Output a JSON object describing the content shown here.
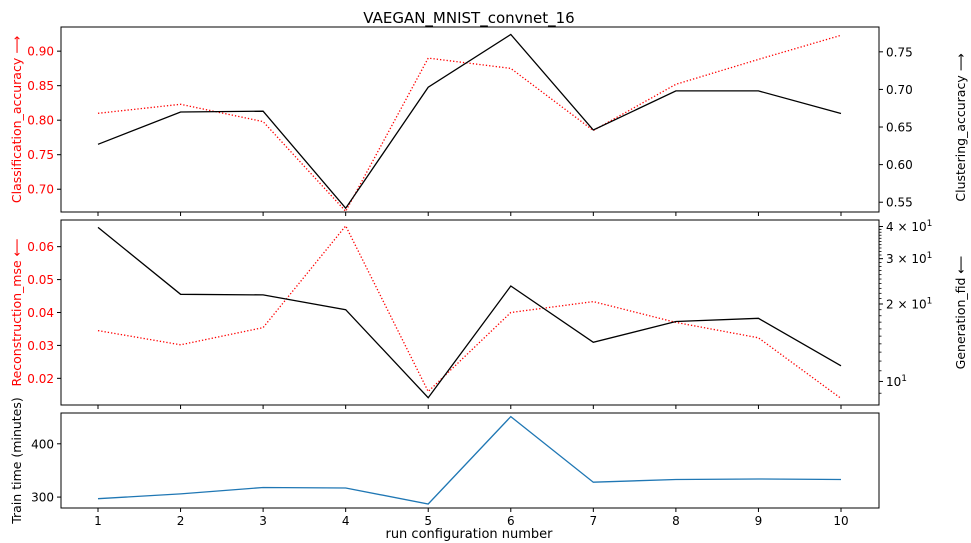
{
  "title": "VAEGAN_MNIST_convnet_16",
  "xlabel": "run configuration number",
  "colors": {
    "red": "#ff0000",
    "black": "#000000",
    "blue": "#1f77b4"
  },
  "chart_data": [
    {
      "type": "line",
      "panel": "top",
      "title": "VAEGAN_MNIST_convnet_16",
      "x": [
        1,
        2,
        3,
        4,
        5,
        6,
        7,
        8,
        9,
        10
      ],
      "xticks": [
        "1",
        "2",
        "3",
        "4",
        "5",
        "6",
        "7",
        "8",
        "9",
        "10"
      ],
      "ylabel_left": "Classification_accuracy ⟶",
      "ylabel_right": "Clustering_accuracy ⟶",
      "yticks_left": [
        "0.70",
        "0.75",
        "0.80",
        "0.85",
        "0.90"
      ],
      "yticks_right": [
        "0.55",
        "0.60",
        "0.65",
        "0.70",
        "0.75"
      ],
      "ylim_left": [
        0.667,
        0.935
      ],
      "ylim_right": [
        0.537,
        0.783
      ],
      "series": [
        {
          "axis": "left",
          "color": "#ff0000",
          "style": "dotted",
          "values": [
            0.81,
            0.823,
            0.798,
            0.668,
            0.89,
            0.875,
            0.785,
            0.852,
            0.888,
            0.923
          ]
        },
        {
          "axis": "right",
          "color": "#000000",
          "style": "solid",
          "values": [
            0.627,
            0.67,
            0.671,
            0.542,
            0.703,
            0.773,
            0.646,
            0.698,
            0.698,
            0.668
          ]
        }
      ]
    },
    {
      "type": "line",
      "panel": "middle",
      "x": [
        1,
        2,
        3,
        4,
        5,
        6,
        7,
        8,
        9,
        10
      ],
      "ylabel_left": "Reconstruction_mse ⟵",
      "ylabel_right": "Generation_fid ⟵",
      "yticks_left": [
        "0.02",
        "0.03",
        "0.04",
        "0.05",
        "0.06"
      ],
      "yticks_right": [
        {
          "base": "10",
          "exp": "1",
          "value": 10
        },
        {
          "base": "2 × 10",
          "exp": "1",
          "value": 20
        },
        {
          "base": "3 × 10",
          "exp": "1",
          "value": 30
        },
        {
          "base": "4 × 10",
          "exp": "1",
          "value": 40
        }
      ],
      "ylim_left": [
        0.0119,
        0.0681
      ],
      "ylim_right": [
        8.1,
        42.4
      ],
      "right_scale": "log",
      "series": [
        {
          "axis": "left",
          "color": "#ff0000",
          "style": "dotted",
          "values": [
            0.0345,
            0.0302,
            0.0354,
            0.0663,
            0.016,
            0.04,
            0.0433,
            0.037,
            0.0323,
            0.0139
          ]
        },
        {
          "axis": "right",
          "color": "#000000",
          "style": "solid",
          "values": [
            39.7,
            21.8,
            21.7,
            19.0,
            8.65,
            23.5,
            14.2,
            17.1,
            17.6,
            11.5
          ]
        }
      ]
    },
    {
      "type": "line",
      "panel": "bottom",
      "x": [
        1,
        2,
        3,
        4,
        5,
        6,
        7,
        8,
        9,
        10
      ],
      "xlabel": "run configuration number",
      "ylabel": "Train time (minutes)",
      "yticks": [
        "300",
        "400"
      ],
      "ylim": [
        279.5,
        457.8
      ],
      "series": [
        {
          "color": "#1f77b4",
          "style": "solid",
          "values": [
            297,
            306,
            318,
            317,
            287,
            451,
            328,
            333,
            334,
            333
          ]
        }
      ]
    }
  ]
}
